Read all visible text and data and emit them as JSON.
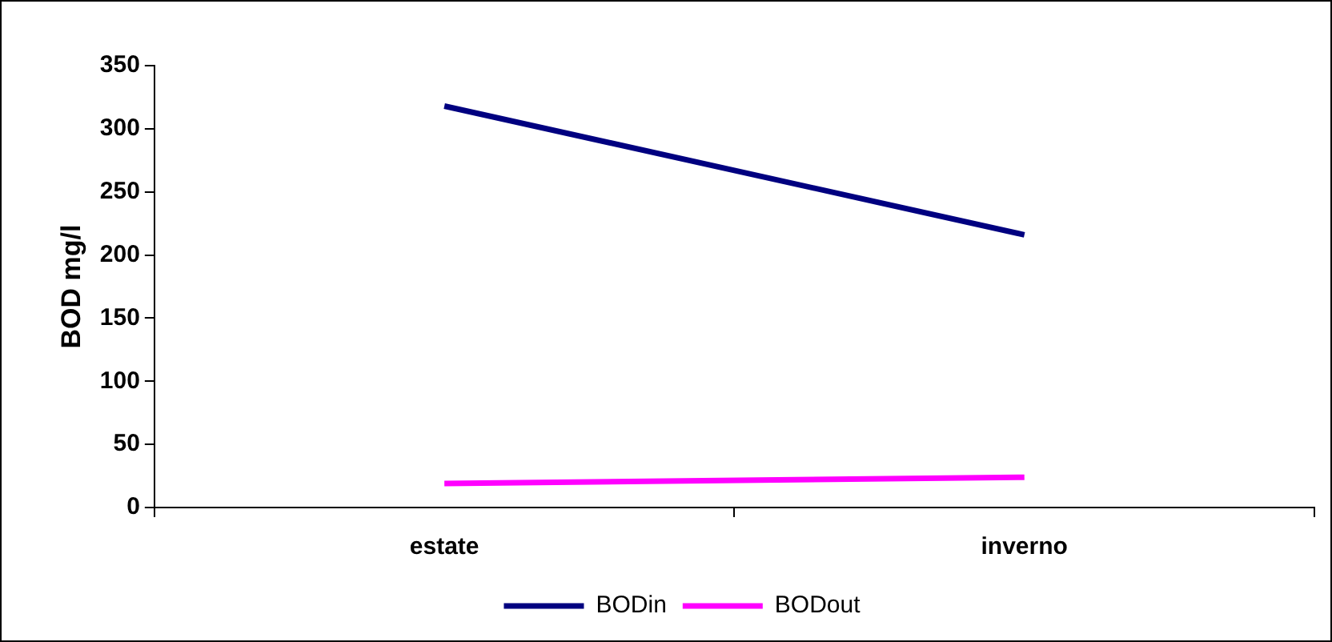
{
  "chart_data": {
    "type": "line",
    "ylabel": "BOD mg/l",
    "categories": [
      "estate",
      "inverno"
    ],
    "series": [
      {
        "name": "BODin",
        "color": "#000080",
        "values": [
          318,
          216
        ]
      },
      {
        "name": "BODout",
        "color": "#ff00ff",
        "values": [
          19,
          24
        ]
      }
    ],
    "ylim": [
      0,
      350
    ],
    "yticks": [
      0,
      50,
      100,
      150,
      200,
      250,
      300,
      350
    ],
    "grid": false,
    "legend": "bottom",
    "marker": "none",
    "line_style": "solid"
  }
}
